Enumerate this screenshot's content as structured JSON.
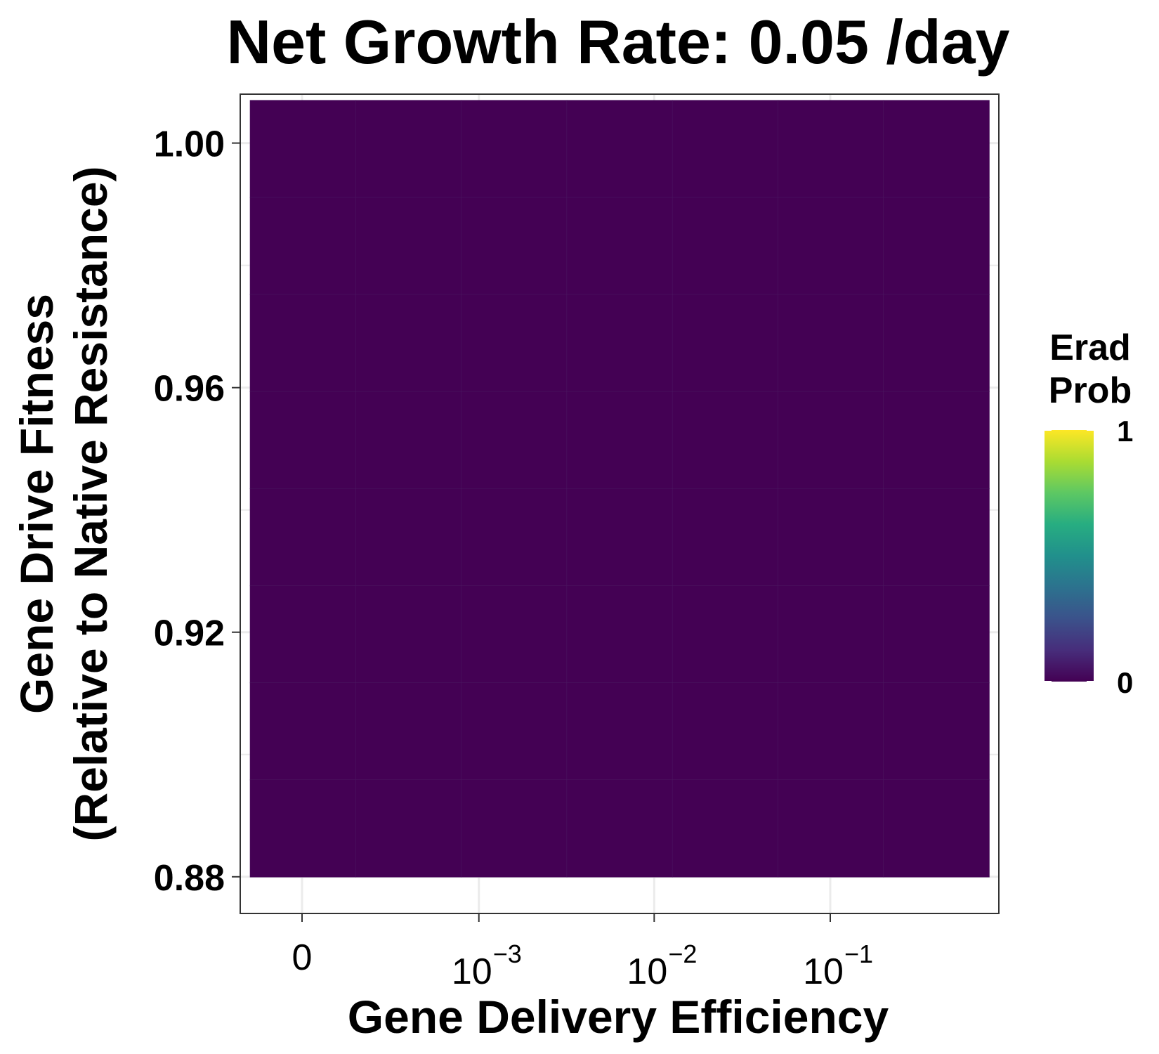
{
  "chart_data": {
    "type": "heatmap",
    "title": "Net Growth Rate: 0.05 /day",
    "xlabel": "Gene Delivery Efficiency",
    "ylabel_line1": "Gene Drive Fitness",
    "ylabel_line2": "(Relative to Native Resistance)",
    "x_scale": "pseudo-log",
    "x_ticks": [
      {
        "value": 0,
        "base": "0",
        "exp": ""
      },
      {
        "value": 0.001,
        "base": "10",
        "exp": "−3"
      },
      {
        "value": 0.01,
        "base": "10",
        "exp": "−2"
      },
      {
        "value": 0.1,
        "base": "10",
        "exp": "−1"
      }
    ],
    "y_ticks": [
      {
        "value": 1.0,
        "label": "1.00"
      },
      {
        "value": 0.96,
        "label": "0.96"
      },
      {
        "value": 0.92,
        "label": "0.92"
      },
      {
        "value": 0.88,
        "label": "0.88"
      }
    ],
    "ylim": [
      0.874,
      1.008
    ],
    "x_cells": 7,
    "y_values": [
      0.88,
      0.89,
      0.9,
      0.91,
      0.92,
      0.93,
      0.94,
      0.95,
      0.96,
      0.97,
      0.98,
      0.99,
      1.0
    ],
    "value": 0,
    "grid": true,
    "legend": {
      "title_line1": "Erad",
      "title_line2": "Prob",
      "min_label": "0",
      "max_label": "1",
      "min": 0,
      "max": 1,
      "placement": "right"
    },
    "colors": {
      "low": "#440154",
      "mid": "#21908C",
      "high": "#FDE725"
    }
  }
}
